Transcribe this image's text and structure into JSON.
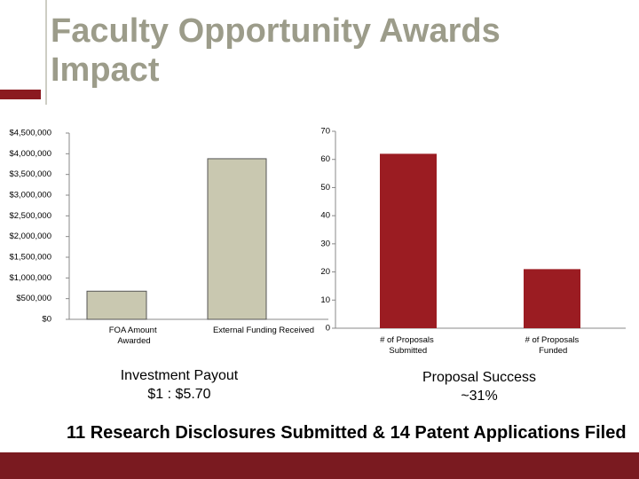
{
  "title": "Faculty Opportunity Awards Impact",
  "footnote": "11 Research Disclosures Submitted & 14 Patent Applications Filed",
  "chart_data": [
    {
      "type": "bar",
      "categories": [
        "FOA Amount Awarded",
        "External Funding Received"
      ],
      "values": [
        680000,
        3880000
      ],
      "color": "#c9c8b0",
      "ylim": [
        0,
        4500000
      ],
      "yticks": [
        {
          "value": 0,
          "label": "$0"
        },
        {
          "value": 500000,
          "label": "$500,000"
        },
        {
          "value": 1000000,
          "label": "$1,000,000"
        },
        {
          "value": 1500000,
          "label": "$1,500,000"
        },
        {
          "value": 2000000,
          "label": "$2,000,000"
        },
        {
          "value": 2500000,
          "label": "$2,500,000"
        },
        {
          "value": 3000000,
          "label": "$3,000,000"
        },
        {
          "value": 3500000,
          "label": "$3,500,000"
        },
        {
          "value": 4000000,
          "label": "$4,000,000"
        },
        {
          "value": 4500000,
          "label": "$4,500,000"
        }
      ],
      "grid": false,
      "annotation": [
        "Investment Payout",
        "$1 : $5.70"
      ]
    },
    {
      "type": "bar",
      "categories": [
        "# of Proposals Submitted",
        "# of Proposals Funded"
      ],
      "values": [
        62,
        21
      ],
      "color": "#9b1c22",
      "ylim": [
        0,
        70
      ],
      "yticks": [
        0,
        10,
        20,
        30,
        40,
        50,
        60,
        70
      ],
      "grid": false,
      "annotation": [
        "Proposal Success",
        "~31%"
      ]
    }
  ]
}
